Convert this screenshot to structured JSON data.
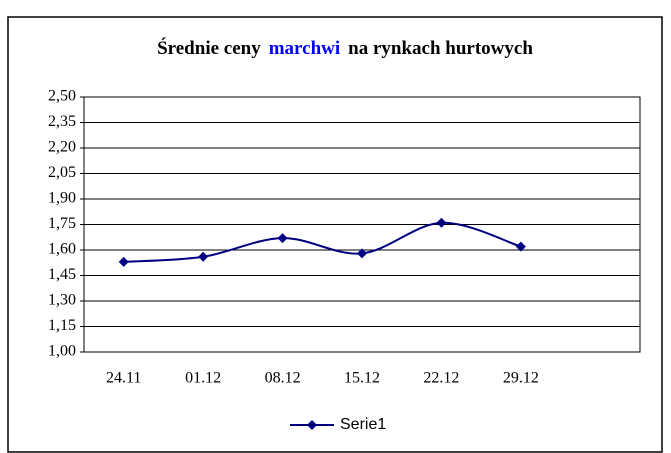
{
  "chart_data": {
    "type": "line",
    "title": [
      {
        "text": "Średnie ceny"
      },
      {
        "text": "marchwi",
        "color": "#0000ff"
      },
      {
        "text": "na rynkach hurtowych"
      }
    ],
    "categories": [
      "24.11",
      "01.12",
      "08.12",
      "15.12",
      "22.12",
      "29.12",
      null
    ],
    "series": [
      {
        "name": "Serie1",
        "color": "#000080",
        "values": [
          1.53,
          1.56,
          1.67,
          1.58,
          1.76,
          1.62,
          null
        ]
      }
    ],
    "ylim": [
      1.0,
      2.5
    ],
    "yticks": [
      {
        "value": 1.0,
        "label": "1,00"
      },
      {
        "value": 1.15,
        "label": "1,15"
      },
      {
        "value": 1.3,
        "label": "1,30"
      },
      {
        "value": 1.45,
        "label": "1,45"
      },
      {
        "value": 1.6,
        "label": "1,60"
      },
      {
        "value": 1.75,
        "label": "1,75"
      },
      {
        "value": 1.9,
        "label": "1,90"
      },
      {
        "value": 2.05,
        "label": "2,05"
      },
      {
        "value": 2.2,
        "label": "2,20"
      },
      {
        "value": 2.35,
        "label": "2,35"
      },
      {
        "value": 2.5,
        "label": "2,50"
      }
    ],
    "grid": true,
    "smooth": true,
    "legend": "bottom"
  }
}
